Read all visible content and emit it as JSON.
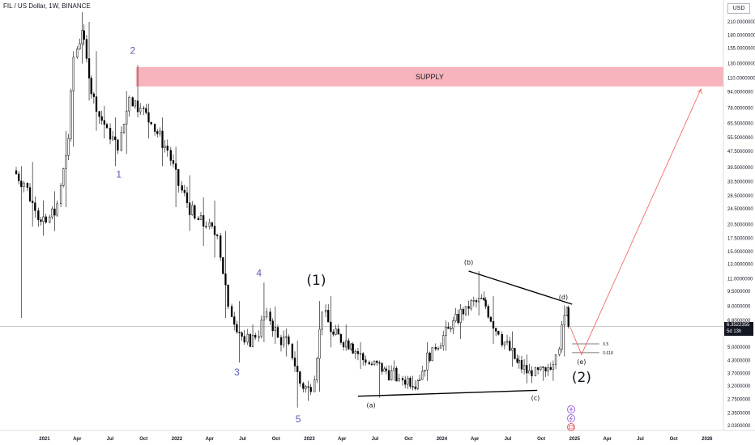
{
  "title": "FIL / US Dollar, 1W, BINANCE",
  "currency": "USD",
  "price_tag": {
    "value": "6.3522355",
    "countdown": "5d 13h"
  },
  "icons": {
    "indicator_1": "plus-circle-icon",
    "indicator_2": "lightning-icon",
    "indicator_3": "calendar-icon"
  },
  "colors": {
    "candle": "#000000",
    "supply_zone": "#f8b4bc",
    "arrow": "#f25a5a",
    "wave_numbers": "#5b5bb5"
  },
  "chart_data": {
    "type": "candlestick",
    "y_scale": "log",
    "ylim": [
      1.96,
      260
    ],
    "y_ticks": [
      "2.0300000",
      "2.3500000",
      "2.7500000",
      "3.2000000",
      "3.7000000",
      "4.3000000",
      "5.0000000",
      "5.8000000",
      "6.8000000",
      "8.0000000",
      "9.5000000",
      "11.0000000",
      "13.0000000",
      "15.0000000",
      "17.5000000",
      "20.5000000",
      "24.5000000",
      "28.5000000",
      "33.5000000",
      "39.5000000",
      "47.5000000",
      "55.5000000",
      "65.5000000",
      "78.0000000",
      "94.0000000",
      "110.0000000",
      "130.0000000",
      "155.0000000",
      "180.0000000",
      "210.0000000",
      "250.0000000"
    ],
    "x_ticks": [
      "2021",
      "Apr",
      "Jul",
      "Oct",
      "2022",
      "Apr",
      "Jul",
      "Oct",
      "2023",
      "Apr",
      "Jul",
      "Oct",
      "2024",
      "Apr",
      "Jul",
      "Oct",
      "2025",
      "Apr",
      "Jul",
      "Oct",
      "2026"
    ],
    "xlim": [
      "2020-10-15",
      "2026-02-15"
    ],
    "ohlc": [
      [
        "2020-10-15",
        38,
        40,
        7,
        33
      ],
      [
        "2020-11-15",
        33,
        42,
        20,
        24
      ],
      [
        "2020-12-15",
        24,
        27,
        18,
        21
      ],
      [
        "2021-01-15",
        21,
        30,
        19,
        26
      ],
      [
        "2021-02-15",
        26,
        60,
        25,
        55
      ],
      [
        "2021-03-15",
        55,
        150,
        50,
        140
      ],
      [
        "2021-04-01",
        140,
        235,
        130,
        190
      ],
      [
        "2021-04-20",
        190,
        210,
        85,
        110
      ],
      [
        "2021-05-10",
        110,
        150,
        60,
        75
      ],
      [
        "2021-06-01",
        75,
        80,
        55,
        62
      ],
      [
        "2021-07-01",
        62,
        70,
        40,
        48
      ],
      [
        "2021-08-01",
        48,
        95,
        46,
        88
      ],
      [
        "2021-09-01",
        88,
        128,
        70,
        78
      ],
      [
        "2021-10-01",
        78,
        82,
        55,
        65
      ],
      [
        "2021-11-01",
        65,
        70,
        40,
        48
      ],
      [
        "2021-12-15",
        48,
        50,
        25,
        32
      ],
      [
        "2022-01-15",
        32,
        36,
        19,
        22
      ],
      [
        "2022-03-01",
        22,
        28,
        16,
        20
      ],
      [
        "2022-04-01",
        20,
        27,
        14,
        18
      ],
      [
        "2022-05-01",
        18,
        19,
        7,
        8
      ],
      [
        "2022-06-01",
        8,
        8.5,
        4.2,
        5.3
      ],
      [
        "2022-07-15",
        5.3,
        6.5,
        5,
        5.6
      ],
      [
        "2022-08-15",
        5.6,
        10.5,
        5.3,
        7.5
      ],
      [
        "2022-09-15",
        7.5,
        8,
        5.2,
        5.6
      ],
      [
        "2022-10-15",
        5.6,
        6.2,
        4.5,
        5.2
      ],
      [
        "2022-11-15",
        5.2,
        5.4,
        2.5,
        3.3
      ],
      [
        "2022-12-15",
        3.3,
        3.4,
        2.7,
        3
      ],
      [
        "2023-01-15",
        3,
        8.5,
        3,
        7.5
      ],
      [
        "2023-02-15",
        7.5,
        9,
        5,
        5.8
      ],
      [
        "2023-03-15",
        5.8,
        6.5,
        4.8,
        5.2
      ],
      [
        "2023-05-01",
        5.2,
        5.3,
        3.9,
        4.2
      ],
      [
        "2023-06-15",
        4.2,
        4.3,
        2.8,
        3.9
      ],
      [
        "2023-08-01",
        3.9,
        4.3,
        3.4,
        3.5
      ],
      [
        "2023-09-15",
        3.5,
        3.6,
        3.05,
        3.4
      ],
      [
        "2023-11-01",
        3.4,
        5.3,
        3.4,
        5
      ],
      [
        "2023-12-15",
        5,
        6.8,
        4.8,
        6.2
      ],
      [
        "2024-02-01",
        6.2,
        8.2,
        5.5,
        8
      ],
      [
        "2024-03-15",
        8,
        12,
        7.2,
        8.6
      ],
      [
        "2024-05-01",
        8.6,
        9,
        5.2,
        5.8
      ],
      [
        "2024-06-15",
        5.8,
        6,
        4,
        4.2
      ],
      [
        "2024-08-01",
        4.2,
        4.6,
        3.3,
        3.6
      ],
      [
        "2024-09-15",
        3.6,
        4,
        3.4,
        3.8
      ],
      [
        "2024-10-20",
        3.8,
        4.3,
        3.4,
        4.6
      ],
      [
        "2024-11-20",
        4.6,
        8.1,
        4.5,
        7.9
      ],
      [
        "2024-12-15",
        7.9,
        8.2,
        6.2,
        6.35
      ]
    ],
    "annotations": {
      "supply_zone": {
        "label": "SUPPLY",
        "price_low": 100,
        "price_high": 125,
        "from": "2021-09-10",
        "to": "2026-02-15"
      },
      "current_price": 6.3522355,
      "waves_primary": [
        {
          "label": "1",
          "date": "2021-07-25",
          "price": 40
        },
        {
          "label": "2",
          "date": "2021-09-01",
          "price": 128
        },
        {
          "label": "3",
          "date": "2022-06-15",
          "price": 4.2
        },
        {
          "label": "4",
          "date": "2022-08-15",
          "price": 10.5
        },
        {
          "label": "5",
          "date": "2022-12-01",
          "price": 2.5
        }
      ],
      "waves_degree": [
        {
          "label": "(1)",
          "date": "2023-01-20",
          "price": 9.5
        },
        {
          "label": "(2)",
          "date": "2025-01-20",
          "price": 4.2
        }
      ],
      "waves_abcde": [
        {
          "label": "(a)",
          "date": "2023-06-20",
          "price": 2.8
        },
        {
          "label": "(b)",
          "date": "2024-03-15",
          "price": 12
        },
        {
          "label": "(c)",
          "date": "2024-09-15",
          "price": 3.05
        },
        {
          "label": "(d)",
          "date": "2024-12-01",
          "price": 8.2
        },
        {
          "label": "(e)",
          "date": "2025-01-20",
          "price": 4.6
        }
      ],
      "fib_levels": [
        {
          "label": "0.5",
          "price": 5.2
        },
        {
          "label": "0.618",
          "price": 4.7
        }
      ],
      "triangle_upper": [
        [
          "2024-03-15",
          12
        ],
        [
          "2024-12-25",
          8.2
        ]
      ],
      "triangle_lower": [
        [
          "2023-05-15",
          2.85
        ],
        [
          "2024-09-20",
          3.05
        ]
      ],
      "projection_path": [
        [
          "2024-12-20",
          6.3
        ],
        [
          "2025-01-20",
          4.6
        ],
        [
          "2025-12-15",
          97
        ]
      ]
    }
  }
}
